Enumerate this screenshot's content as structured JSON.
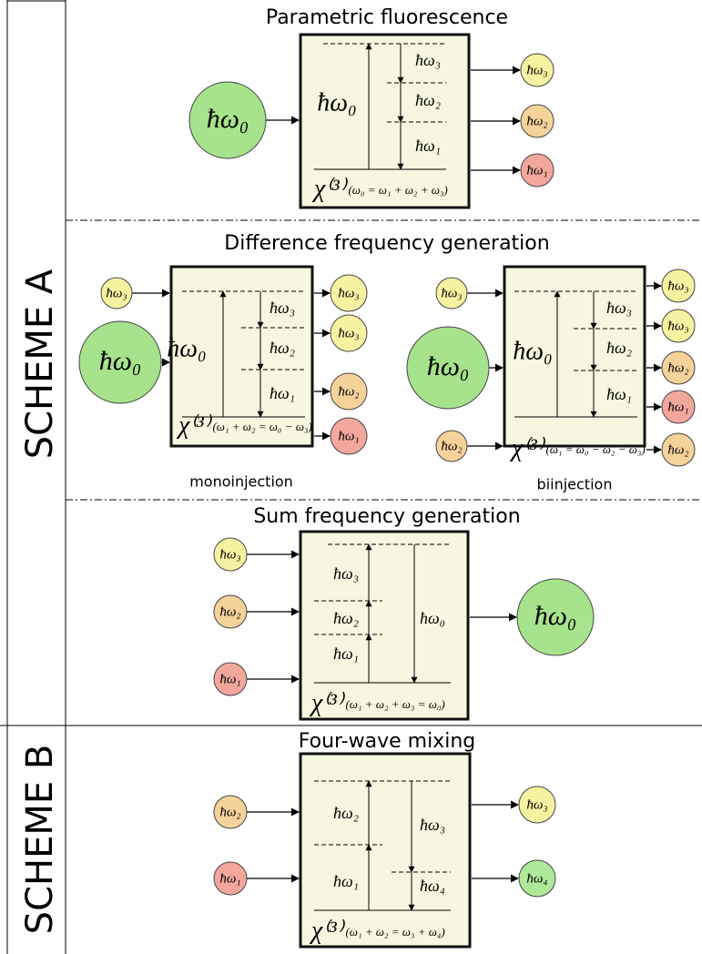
{
  "schemes": [
    "SCHEME A",
    "SCHEME B"
  ],
  "sections": [
    {
      "title": "Parametric fluorescence",
      "diagrams": [
        {
          "inputs": [
            "ħω₀"
          ],
          "outputs": [
            "ħω₃",
            "ħω₂",
            "ħω₁"
          ],
          "box_labels": [
            "ħω₀",
            "ħω₃",
            "ħω₂",
            "ħω₁"
          ],
          "chi": "χ⁽³⁾",
          "equation": "(ω₀ = ω₁ + ω₂ + ω₃)"
        }
      ]
    },
    {
      "title": "Difference frequency generation",
      "diagrams": [
        {
          "inputs": [
            "ħω₃",
            "ħω₀"
          ],
          "outputs": [
            "ħω₃",
            "ħω₃",
            "ħω₂",
            "ħω₁"
          ],
          "box_labels": [
            "ħω₀",
            "ħω₃",
            "ħω₂",
            "ħω₁"
          ],
          "chi": "χ⁽³⁾",
          "equation": "(ω₁ + ω₂ = ω₀ − ω₃)",
          "caption": "monoinjection"
        },
        {
          "inputs": [
            "ħω₃",
            "ħω₀",
            "ħω₂"
          ],
          "outputs": [
            "ħω₃",
            "ħω₃",
            "ħω₂",
            "ħω₁",
            "ħω₂"
          ],
          "box_labels": [
            "ħω₀",
            "ħω₃",
            "ħω₂",
            "ħω₁"
          ],
          "chi": "χ⁽³⁾",
          "equation": "(ω₁ = ω₀ − ω₂ − ω₃)",
          "caption": "biinjection"
        }
      ]
    },
    {
      "title": "Sum frequency generation",
      "diagrams": [
        {
          "inputs": [
            "ħω₃",
            "ħω₂",
            "ħω₁"
          ],
          "outputs": [
            "ħω₀"
          ],
          "box_labels": [
            "ħω₃",
            "ħω₂",
            "ħω₁",
            "ħω₀"
          ],
          "chi": "χ⁽³⁾",
          "equation": "(ω₁ + ω₂ + ω₃ = ω₀)"
        }
      ]
    },
    {
      "title": "Four-wave mixing",
      "diagrams": [
        {
          "inputs": [
            "ħω₂",
            "ħω₁"
          ],
          "outputs": [
            "ħω₃",
            "ħω₄"
          ],
          "box_labels": [
            "ħω₂",
            "ħω₁",
            "ħω₃",
            "ħω₄"
          ],
          "chi": "χ⁽³⁾",
          "equation": "(ω₁ + ω₂ = ω₃ + ω₄)"
        }
      ]
    }
  ]
}
